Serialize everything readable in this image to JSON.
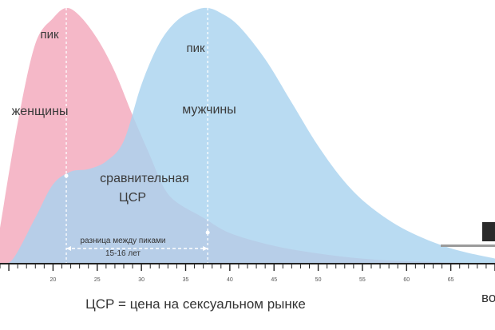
{
  "chart_data": {
    "type": "area",
    "title": "",
    "xlabel": "ЦСР = цена на сексуальном рынке",
    "ylabel": "",
    "xlim": [
      14,
      70
    ],
    "x_tick_labels": [
      20,
      25,
      30,
      35,
      40,
      45,
      50,
      55,
      60,
      65
    ],
    "x_end_label": "во",
    "series": [
      {
        "key": "women",
        "color": "#f5b8c8",
        "peak_label_top": "пик",
        "peak_label_bottom": "женщины",
        "points": [
          [
            14,
            0.14
          ],
          [
            16,
            0.55
          ],
          [
            18,
            0.86
          ],
          [
            20,
            0.96
          ],
          [
            21.5,
            1.0
          ],
          [
            23,
            0.97
          ],
          [
            25,
            0.88
          ],
          [
            27,
            0.75
          ],
          [
            29,
            0.58
          ],
          [
            31,
            0.42
          ],
          [
            32.5,
            0.3
          ],
          [
            34,
            0.24
          ],
          [
            37,
            0.18
          ],
          [
            40,
            0.12
          ],
          [
            45,
            0.07
          ],
          [
            50,
            0.04
          ],
          [
            55,
            0.02
          ],
          [
            60,
            0.01
          ],
          [
            70,
            0.0
          ]
        ]
      },
      {
        "key": "men",
        "color": "#a9d3ef",
        "peak_label_top": "пик",
        "peak_label_bottom": "мужчины",
        "points": [
          [
            14,
            0.0
          ],
          [
            15.5,
            0.02
          ],
          [
            18,
            0.18
          ],
          [
            20,
            0.31
          ],
          [
            22,
            0.36
          ],
          [
            24,
            0.37
          ],
          [
            26,
            0.4
          ],
          [
            28,
            0.48
          ],
          [
            30,
            0.7
          ],
          [
            32,
            0.86
          ],
          [
            34,
            0.95
          ],
          [
            36,
            0.99
          ],
          [
            37.5,
            1.0
          ],
          [
            39,
            0.98
          ],
          [
            41,
            0.93
          ],
          [
            44,
            0.8
          ],
          [
            47,
            0.63
          ],
          [
            50,
            0.46
          ],
          [
            53,
            0.32
          ],
          [
            56,
            0.22
          ],
          [
            60,
            0.13
          ],
          [
            65,
            0.06
          ],
          [
            70,
            0.02
          ]
        ]
      }
    ],
    "annotations": {
      "relative_price_line1": "сравнительная",
      "relative_price_line2": "ЦСР",
      "gap_line1": "разница между пиками",
      "gap_line2": "15-16 лет",
      "gap_from": 21.5,
      "gap_to": 37.5
    }
  }
}
